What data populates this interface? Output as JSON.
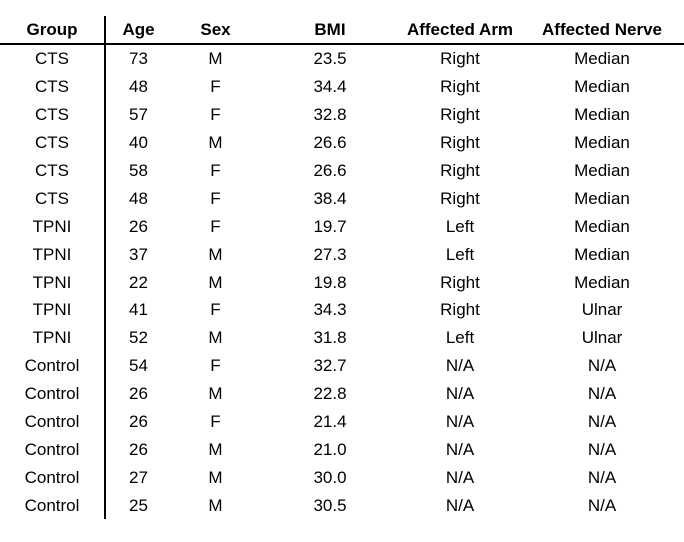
{
  "chart_data": {
    "type": "table",
    "title": "",
    "columns": [
      "Group",
      "Age",
      "Sex",
      "BMI",
      "Affected Arm",
      "Affected Nerve"
    ],
    "rows": [
      [
        "CTS",
        "73",
        "M",
        "23.5",
        "Right",
        "Median"
      ],
      [
        "CTS",
        "48",
        "F",
        "34.4",
        "Right",
        "Median"
      ],
      [
        "CTS",
        "57",
        "F",
        "32.8",
        "Right",
        "Median"
      ],
      [
        "CTS",
        "40",
        "M",
        "26.6",
        "Right",
        "Median"
      ],
      [
        "CTS",
        "58",
        "F",
        "26.6",
        "Right",
        "Median"
      ],
      [
        "CTS",
        "48",
        "F",
        "38.4",
        "Right",
        "Median"
      ],
      [
        "TPNI",
        "26",
        "F",
        "19.7",
        "Left",
        "Median"
      ],
      [
        "TPNI",
        "37",
        "M",
        "27.3",
        "Left",
        "Median"
      ],
      [
        "TPNI",
        "22",
        "M",
        "19.8",
        "Right",
        "Median"
      ],
      [
        "TPNI",
        "41",
        "F",
        "34.3",
        "Right",
        "Ulnar"
      ],
      [
        "TPNI",
        "52",
        "M",
        "31.8",
        "Left",
        "Ulnar"
      ],
      [
        "Control",
        "54",
        "F",
        "32.7",
        "N/A",
        "N/A"
      ],
      [
        "Control",
        "26",
        "M",
        "22.8",
        "N/A",
        "N/A"
      ],
      [
        "Control",
        "26",
        "F",
        "21.4",
        "N/A",
        "N/A"
      ],
      [
        "Control",
        "26",
        "M",
        "21.0",
        "N/A",
        "N/A"
      ],
      [
        "Control",
        "27",
        "M",
        "30.0",
        "N/A",
        "N/A"
      ],
      [
        "Control",
        "25",
        "M",
        "30.5",
        "N/A",
        "N/A"
      ]
    ],
    "layout": {
      "header_bold": true,
      "header_underline": true,
      "vertical_rule_after_column": "Group",
      "grid": "off"
    }
  },
  "colors": {
    "text": "#000000",
    "border": "#000000",
    "background": "#ffffff"
  }
}
